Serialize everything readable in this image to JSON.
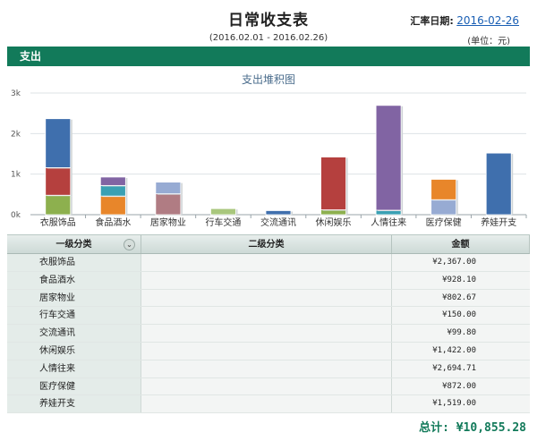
{
  "header": {
    "title": "日常收支表",
    "exchange_label": "汇率日期:",
    "exchange_date": "2016-02-26",
    "date_range": "(2016.02.01 - 2016.02.26)",
    "unit": "(单位：元)"
  },
  "section": {
    "label": "支出"
  },
  "chart_data": {
    "type": "bar",
    "title": "支出堆积图",
    "stacked": true,
    "categories": [
      "衣服饰品",
      "食品酒水",
      "居家物业",
      "行车交通",
      "交流通讯",
      "休闲娱乐",
      "人情往来",
      "医疗保健",
      "养娃开支"
    ],
    "ylim": [
      0,
      3000
    ],
    "yticks": [
      "0k",
      "1k",
      "2k",
      "3k"
    ],
    "grid": true,
    "segments": [
      [
        {
          "value": 480,
          "color": "#8db04e"
        },
        {
          "value": 680,
          "color": "#b5403e"
        },
        {
          "value": 1207,
          "color": "#3f6fad"
        }
      ],
      [
        {
          "value": 460,
          "color": "#e8862a"
        },
        {
          "value": 260,
          "color": "#3aa0b3"
        },
        {
          "value": 208,
          "color": "#8164a3"
        }
      ],
      [
        {
          "value": 515,
          "color": "#b07c83"
        },
        {
          "value": 288,
          "color": "#97abd3"
        }
      ],
      [
        {
          "value": 150,
          "color": "#a9c77d"
        }
      ],
      [
        {
          "value": 100,
          "color": "#3f6fad"
        }
      ],
      [
        {
          "value": 120,
          "color": "#8db04e"
        },
        {
          "value": 1302,
          "color": "#b5403e"
        }
      ],
      [
        {
          "value": 110,
          "color": "#3aa0b3"
        },
        {
          "value": 2585,
          "color": "#8164a3"
        }
      ],
      [
        {
          "value": 370,
          "color": "#97abd3"
        },
        {
          "value": 502,
          "color": "#e8862a"
        }
      ],
      [
        {
          "value": 1519,
          "color": "#3f6fad"
        }
      ]
    ]
  },
  "table": {
    "headers": [
      "一级分类",
      "二级分类",
      "金额"
    ],
    "rows": [
      {
        "category": "衣服饰品",
        "amount": "¥2,367.00"
      },
      {
        "category": "食品酒水",
        "amount": "¥928.10"
      },
      {
        "category": "居家物业",
        "amount": "¥802.67"
      },
      {
        "category": "行车交通",
        "amount": "¥150.00"
      },
      {
        "category": "交流通讯",
        "amount": "¥99.80"
      },
      {
        "category": "休闲娱乐",
        "amount": "¥1,422.00"
      },
      {
        "category": "人情往来",
        "amount": "¥2,694.71"
      },
      {
        "category": "医疗保健",
        "amount": "¥872.00"
      },
      {
        "category": "养娃开支",
        "amount": "¥1,519.00"
      }
    ],
    "sort_icon": "chevron-down-icon"
  },
  "footer": {
    "total": "总计: ¥10,855.28"
  }
}
